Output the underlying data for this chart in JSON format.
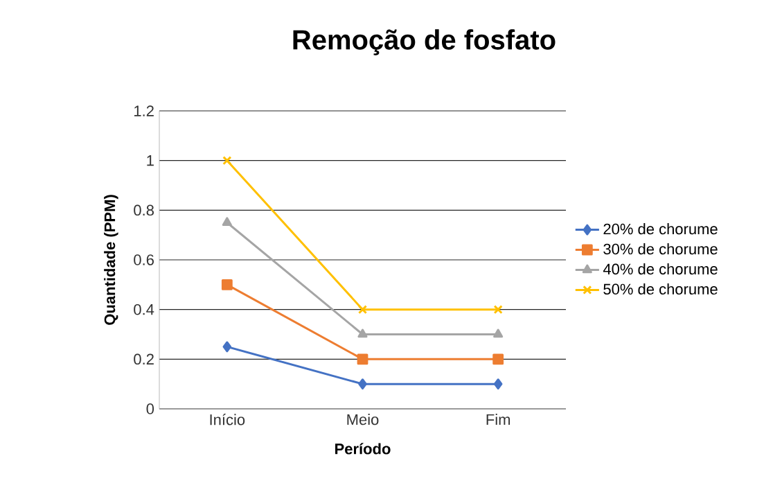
{
  "chart_data": {
    "type": "line",
    "title": "Remoção de fosfato",
    "xlabel": "Período",
    "ylabel": "Quantidade (PPM)",
    "categories": [
      "Início",
      "Meio",
      "Fim"
    ],
    "series": [
      {
        "name": "20% de chorume",
        "color": "#4472c4",
        "marker": "diamond",
        "values": [
          0.25,
          0.1,
          0.1
        ]
      },
      {
        "name": "30% de chorume",
        "color": "#ed7d31",
        "marker": "square",
        "values": [
          0.5,
          0.2,
          0.2
        ]
      },
      {
        "name": "40% de chorume",
        "color": "#a5a5a5",
        "marker": "triangle",
        "values": [
          0.75,
          0.3,
          0.3
        ]
      },
      {
        "name": "50%  de chorume",
        "color": "#ffc000",
        "marker": "cross",
        "values": [
          1,
          0.4,
          0.4
        ]
      }
    ],
    "ylim": [
      0,
      1.2
    ],
    "yticks": [
      0,
      0.2,
      0.4,
      0.6,
      0.8,
      1,
      1.2
    ],
    "grid": "y",
    "legend": "right",
    "line_style": "solid"
  }
}
